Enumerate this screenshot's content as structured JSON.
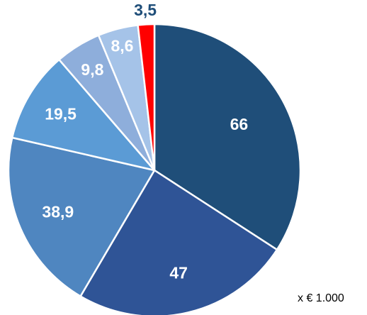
{
  "chart_data": {
    "type": "pie",
    "title": "",
    "values": [
      66,
      47,
      38.9,
      19.5,
      9.8,
      8.6,
      3.5
    ],
    "data_labels": [
      "66",
      "47",
      "38,9",
      "19,5",
      "9,8",
      "8,6",
      "3,5"
    ],
    "colors": [
      "#1f4e79",
      "#2f5496",
      "#4f86c0",
      "#5b9bd5",
      "#8eaedb",
      "#a5c3e8",
      "#ff0000"
    ],
    "label_colors": [
      "#ffffff",
      "#ffffff",
      "#ffffff",
      "#ffffff",
      "#ffffff",
      "#ffffff",
      "#1f4e79"
    ],
    "start_angle": "12 o'clock",
    "direction": "clockwise",
    "unit_note": "x € 1.000"
  }
}
